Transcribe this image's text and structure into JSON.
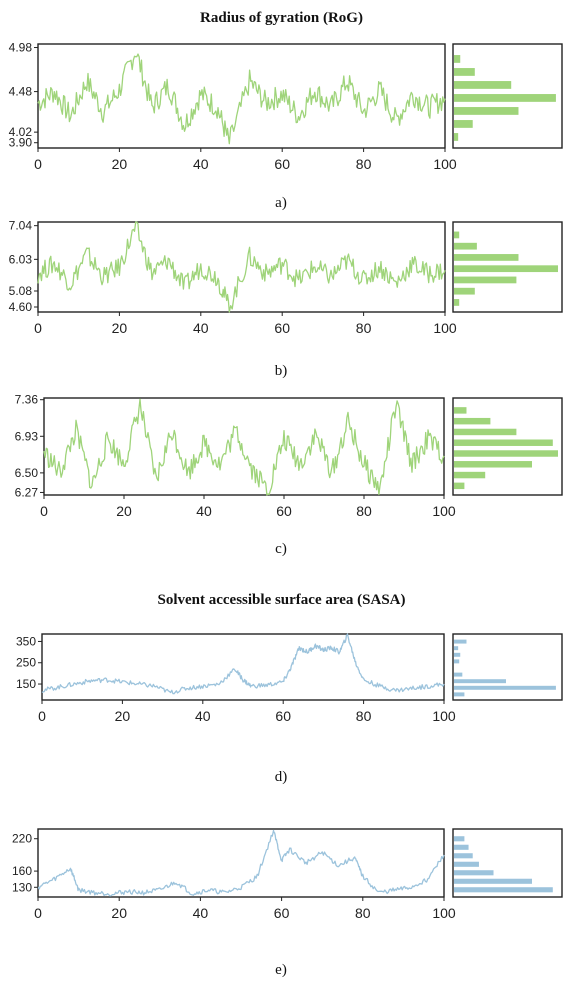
{
  "titles": {
    "rog": "Radius of gyration (RoG)",
    "sasa": "Solvent accessible surface area (SASA)"
  },
  "colors": {
    "green": "#9fd47a",
    "blue": "#9cc3dc"
  },
  "chart_data": [
    {
      "type": "line",
      "caption": "a)",
      "color": "green",
      "x_ticks": [
        0,
        20,
        40,
        60,
        80,
        100
      ],
      "xlim": [
        0,
        100
      ],
      "y_ticks": [
        3.9,
        4.02,
        4.48,
        4.98
      ],
      "y_tick_labels": [
        "3.90",
        "4.02",
        "4.48",
        "4.98"
      ],
      "ylim": [
        3.84,
        5.02
      ],
      "series": [
        {
          "x": [
            0,
            4,
            8,
            12,
            16,
            20,
            24,
            28,
            32,
            36,
            40,
            44,
            47,
            52,
            56,
            60,
            64,
            68,
            72,
            76,
            80,
            84,
            88,
            92,
            96,
            100
          ],
          "y": [
            4.35,
            4.48,
            4.2,
            4.6,
            4.25,
            4.5,
            4.95,
            4.3,
            4.55,
            4.1,
            4.45,
            4.3,
            3.9,
            4.6,
            4.35,
            4.45,
            4.2,
            4.5,
            4.3,
            4.6,
            4.25,
            4.5,
            4.15,
            4.45,
            4.3,
            4.4
          ]
        }
      ],
      "histogram": [
        0.04,
        0.18,
        0.62,
        0.98,
        0.55,
        0.2,
        0.06
      ]
    },
    {
      "type": "line",
      "caption": "b)",
      "color": "green",
      "x_ticks": [
        0,
        20,
        40,
        60,
        80,
        100
      ],
      "xlim": [
        0,
        100
      ],
      "y_ticks": [
        4.6,
        5.08,
        6.03,
        7.04
      ],
      "y_tick_labels": [
        "4.60",
        "5.08",
        "6.03",
        "7.04"
      ],
      "ylim": [
        4.45,
        7.15
      ],
      "series": [
        {
          "x": [
            0,
            4,
            8,
            12,
            16,
            20,
            24,
            28,
            32,
            36,
            40,
            44,
            47,
            52,
            56,
            60,
            64,
            68,
            72,
            76,
            80,
            84,
            88,
            92,
            96,
            100
          ],
          "y": [
            5.6,
            5.9,
            5.3,
            6.2,
            5.5,
            5.8,
            7.0,
            5.6,
            6.0,
            5.2,
            5.8,
            5.5,
            4.6,
            6.1,
            5.6,
            5.9,
            5.4,
            5.8,
            5.5,
            6.0,
            5.4,
            5.8,
            5.3,
            5.9,
            5.6,
            5.7
          ]
        }
      ],
      "histogram": [
        0.05,
        0.2,
        0.6,
        1.0,
        0.62,
        0.22,
        0.05
      ]
    },
    {
      "type": "line",
      "caption": "c)",
      "color": "green",
      "x_ticks": [
        0,
        20,
        40,
        60,
        80,
        100
      ],
      "xlim": [
        0,
        100
      ],
      "y_ticks": [
        6.27,
        6.5,
        6.93,
        7.36
      ],
      "y_tick_labels": [
        "6.27",
        "6.50",
        "6.93",
        "7.36"
      ],
      "ylim": [
        6.24,
        7.38
      ],
      "series": [
        {
          "x": [
            0,
            4,
            8,
            12,
            16,
            20,
            24,
            28,
            32,
            36,
            40,
            44,
            48,
            52,
            56,
            60,
            64,
            68,
            72,
            76,
            80,
            84,
            88,
            92,
            96,
            100
          ],
          "y": [
            6.75,
            6.5,
            7.0,
            6.35,
            6.9,
            6.6,
            7.3,
            6.4,
            7.0,
            6.5,
            6.85,
            6.6,
            7.0,
            6.55,
            6.3,
            6.9,
            6.6,
            6.95,
            6.5,
            7.1,
            6.6,
            6.3,
            7.3,
            6.6,
            6.9,
            6.7
          ]
        }
      ],
      "histogram": [
        0.1,
        0.3,
        0.75,
        1.0,
        0.95,
        0.6,
        0.35,
        0.12
      ]
    },
    {
      "type": "line",
      "caption": "d)",
      "color": "blue",
      "x_ticks": [
        0,
        20,
        40,
        60,
        80,
        100
      ],
      "xlim": [
        0,
        100
      ],
      "y_ticks": [
        150,
        250,
        350
      ],
      "y_tick_labels": [
        "150",
        "250",
        "350"
      ],
      "ylim": [
        75,
        385
      ],
      "series": [
        {
          "x": [
            0,
            4,
            8,
            12,
            16,
            20,
            24,
            28,
            32,
            36,
            40,
            44,
            48,
            50,
            52,
            56,
            60,
            62,
            64,
            66,
            68,
            70,
            72,
            74,
            76,
            78,
            80,
            84,
            88,
            92,
            96,
            100
          ],
          "y": [
            120,
            135,
            150,
            165,
            170,
            160,
            150,
            140,
            110,
            130,
            140,
            150,
            220,
            170,
            140,
            145,
            160,
            230,
            320,
            300,
            330,
            310,
            320,
            300,
            380,
            250,
            170,
            140,
            120,
            130,
            140,
            150
          ]
        }
      ],
      "histogram": [
        0.1,
        0.98,
        0.5,
        0.08,
        0.0,
        0.05,
        0.06,
        0.04,
        0.12
      ]
    },
    {
      "type": "line",
      "caption": "e)",
      "color": "blue",
      "x_ticks": [
        0,
        20,
        40,
        60,
        80,
        100
      ],
      "xlim": [
        0,
        100
      ],
      "y_ticks": [
        130,
        160,
        220
      ],
      "y_tick_labels": [
        "130",
        "160",
        "220"
      ],
      "ylim": [
        112,
        238
      ],
      "series": [
        {
          "x": [
            0,
            4,
            8,
            10,
            14,
            18,
            22,
            26,
            30,
            34,
            38,
            42,
            46,
            50,
            54,
            58,
            60,
            62,
            66,
            70,
            74,
            78,
            80,
            84,
            88,
            92,
            96,
            100
          ],
          "y": [
            130,
            145,
            165,
            125,
            120,
            118,
            122,
            120,
            125,
            140,
            118,
            125,
            120,
            130,
            150,
            235,
            180,
            200,
            175,
            195,
            170,
            185,
            150,
            120,
            125,
            130,
            145,
            190
          ]
        }
      ],
      "histogram": [
        0.95,
        0.75,
        0.38,
        0.24,
        0.18,
        0.14,
        0.1
      ]
    }
  ]
}
